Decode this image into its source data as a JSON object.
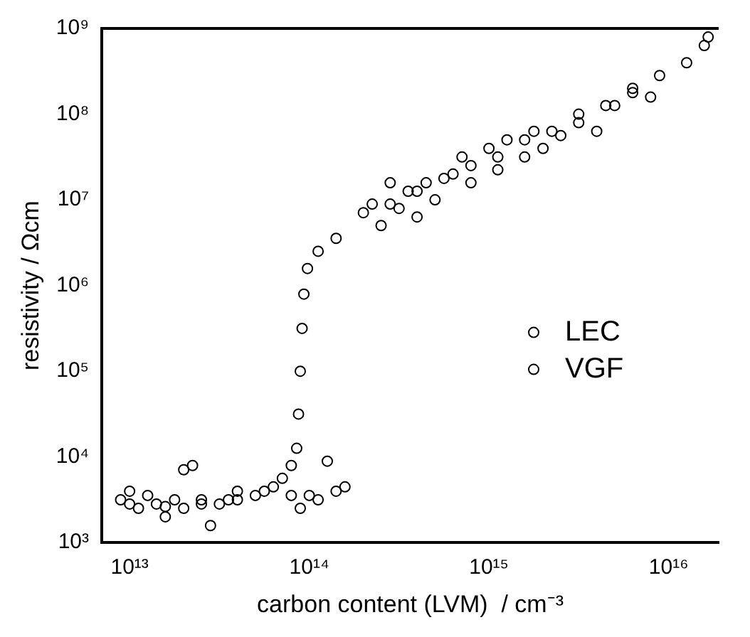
{
  "chart_data": {
    "type": "scatter",
    "xlabel": "carbon content (LVM)  / cm⁻³",
    "ylabel": "resistivity / Ωcm",
    "log": "xy",
    "grid": false,
    "marker": "circle",
    "legend": "right",
    "xlim": [
      7000000000000.0,
      1.9e+16
    ],
    "ylim": [
      1000.0,
      1000000000.0
    ],
    "xticks": [
      {
        "value": 10000000000000.0,
        "label": "10¹³"
      },
      {
        "value": 100000000000000.0,
        "label": "10¹⁴"
      },
      {
        "value": 1000000000000000.0,
        "label": "10¹⁵"
      },
      {
        "value": 1e+16,
        "label": "10¹⁶"
      }
    ],
    "yticks": [
      {
        "value": 1000.0,
        "label": "10³"
      },
      {
        "value": 10000.0,
        "label": "10⁴"
      },
      {
        "value": 100000.0,
        "label": "10⁵"
      },
      {
        "value": 1000000.0,
        "label": "10⁶"
      },
      {
        "value": 10000000.0,
        "label": "10⁷"
      },
      {
        "value": 100000000.0,
        "label": "10⁸"
      },
      {
        "value": 1000000000.0,
        "label": "10⁹"
      }
    ],
    "series": [
      {
        "name": "LEC",
        "color": "#000000",
        "x": [
          8910000000000.0,
          10000000000000.0,
          11200000000000.0,
          12600000000000.0,
          14100000000000.0,
          15800000000000.0,
          17800000000000.0,
          20000000000000.0,
          22400000000000.0,
          20000000000000.0,
          25100000000000.0,
          28200000000000.0,
          31600000000000.0,
          35500000000000.0,
          39800000000000.0,
          50100000000000.0,
          63100000000000.0,
          79400000000000.0,
          89100000000000.0,
          100000000000000.0,
          112000000000000.0,
          126000000000000.0,
          141000000000000.0,
          158000000000000.0,
          224000000000000.0,
          251000000000000.0,
          282000000000000.0,
          316000000000000.0,
          355000000000000.0,
          398000000000000.0,
          447000000000000.0,
          501000000000000.0,
          631000000000000.0,
          708000000000000.0,
          794000000000000.0,
          1000000000000000.0,
          1120000000000000.0,
          1260000000000000.0,
          1580000000000000.0,
          1780000000000000.0,
          2000000000000000.0,
          2510000000000000.0,
          3160000000000000.0,
          3980000000000000.0,
          5010000000000000.0,
          6310000000000000.0,
          7940000000000000.0
        ],
        "values": [
          3160.0,
          3980.0,
          2510.0,
          3550.0,
          2820.0,
          2000.0,
          3160.0,
          7080.0,
          7940.0,
          2510.0,
          3160.0,
          1580.0,
          2820.0,
          3160.0,
          3980.0,
          3550.0,
          4470.0,
          3550.0,
          2510.0,
          3550.0,
          3160.0,
          8910.0,
          3980.0,
          4470.0,
          8910000.0,
          5010000.0,
          15800000.0,
          7940000.0,
          12600000.0,
          6310000.0,
          15800000.0,
          10000000.0,
          20000000.0,
          31600000.0,
          15800000.0,
          39800000.0,
          22400000.0,
          50100000.0,
          31600000.0,
          63100000.0,
          39800000.0,
          56200000.0,
          100000000.0,
          63100000.0,
          126000000.0,
          178000000.0,
          158000000.0
        ]
      },
      {
        "name": "VGF",
        "color": "#000000",
        "x": [
          10000000000000.0,
          15800000000000.0,
          25100000000000.0,
          39800000000000.0,
          56200000000000.0,
          70800000000000.0,
          79400000000000.0,
          85100000000000.0,
          87100000000000.0,
          89100000000000.0,
          91200000000000.0,
          93300000000000.0,
          97700000000000.0,
          112000000000000.0,
          141000000000000.0,
          200000000000000.0,
          282000000000000.0,
          398000000000000.0,
          562000000000000.0,
          794000000000000.0,
          1120000000000000.0,
          1580000000000000.0,
          2240000000000000.0,
          3160000000000000.0,
          4470000000000000.0,
          6310000000000000.0,
          8910000000000000.0,
          1.26e+16,
          1.58e+16,
          1.66e+16
        ],
        "values": [
          2820.0,
          2630.0,
          2820.0,
          3160.0,
          3980.0,
          5620.0,
          7940.0,
          12600.0,
          31600.0,
          100000.0,
          316000.0,
          794000.0,
          1580000.0,
          2510000.0,
          3550000.0,
          7080000.0,
          8910000.0,
          12600000.0,
          17800000.0,
          25100000.0,
          31600000.0,
          50100000.0,
          63100000.0,
          79400000.0,
          126000000.0,
          200000000.0,
          282000000.0,
          398000000.0,
          631000000.0,
          794000000.0
        ]
      }
    ]
  }
}
